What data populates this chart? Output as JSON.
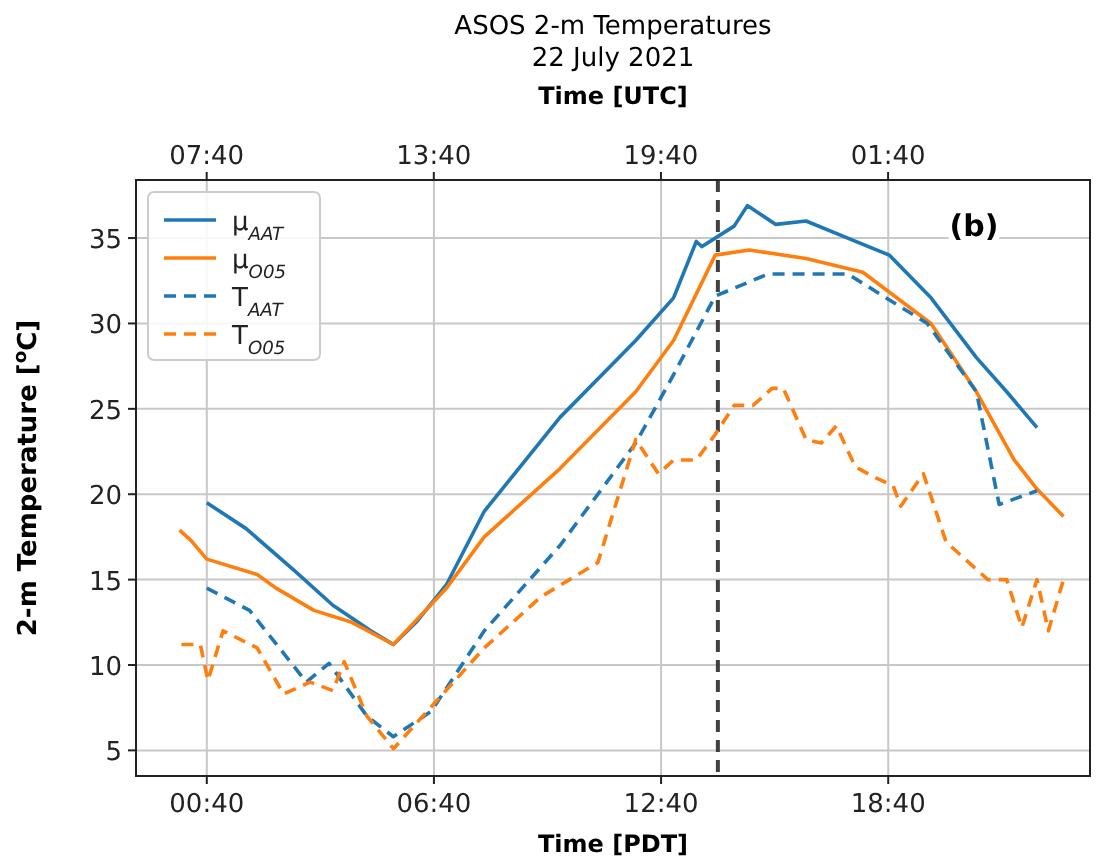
{
  "chart_data": {
    "type": "line",
    "title": "ASOS 2-m Temperatures",
    "subtitle": "22 July 2021",
    "xlabel": "Time [PDT]",
    "x2label": "Time [UTC]",
    "ylabel": "2-m Temperature [$^{o}$C]",
    "xlim": [
      -1.2,
      24
    ],
    "xticks": [
      {
        "value": 0.67,
        "label": "00:40"
      },
      {
        "value": 6.67,
        "label": "06:40"
      },
      {
        "value": 12.67,
        "label": "12:40"
      },
      {
        "value": 18.67,
        "label": "18:40"
      }
    ],
    "x2lim": [
      "2021-07-22T05:48",
      "2021-07-23T07:00"
    ],
    "x2ticks": [
      {
        "value": "2021-07-22T07:40",
        "label": "07:40"
      },
      {
        "value": "2021-07-22T13:40",
        "label": "13:40"
      },
      {
        "value": "2021-07-22T19:40",
        "label": "19:40"
      },
      {
        "value": "2021-07-23T01:40",
        "label": "01:40"
      }
    ],
    "ylim": [
      3.5,
      38.4
    ],
    "yticks": [
      5,
      10,
      15,
      20,
      25,
      30,
      35
    ],
    "grid": true,
    "legend": "top left",
    "annotations": [
      "(b)"
    ],
    "ref_lines": [
      {
        "axis": "x",
        "value": 14.17,
        "color": "#404040",
        "line_style": "dashed"
      }
    ],
    "series": [
      {
        "name": "μ$_{AAT}$",
        "color": "#1f77b4",
        "line_style": "solid",
        "x": [
          0.67,
          1.7,
          3,
          4,
          5,
          5.6,
          6.2,
          7,
          8,
          10,
          12,
          13,
          13.6,
          13.75,
          14.6,
          14.95,
          15.7,
          16.5,
          17.6,
          18.7,
          19.8,
          21,
          21.8,
          22.6
        ],
        "values": [
          19.5,
          18,
          15.5,
          13.5,
          12,
          11.2,
          12.5,
          14.7,
          19,
          24.5,
          29,
          31.5,
          34.8,
          34.5,
          35.7,
          36.9,
          35.8,
          36,
          35,
          34,
          31.5,
          28,
          26,
          23.9
        ]
      },
      {
        "name": "μ$_{O05}$",
        "color": "#ff7f0e",
        "line_style": "solid",
        "x": [
          -0.05,
          0.25,
          0.67,
          2,
          2.5,
          3.5,
          4.5,
          5.6,
          7,
          8,
          10,
          12,
          13,
          14.1,
          15,
          16.5,
          18,
          19.8,
          21,
          22,
          22.6,
          23.3
        ],
        "values": [
          17.9,
          17.3,
          16.2,
          15.3,
          14.5,
          13.2,
          12.5,
          11.2,
          14.5,
          17.5,
          21.5,
          26,
          29,
          34,
          34.3,
          33.8,
          33,
          30,
          26,
          22,
          20.3,
          18.7
        ]
      },
      {
        "name": "T$_{AAT}$",
        "color": "#1f77b4",
        "line_style": "dashed",
        "x": [
          0.67,
          1.8,
          3.3,
          3.9,
          4.9,
          5.6,
          6.6,
          8,
          10,
          12,
          13,
          14.1,
          15.5,
          17.6,
          19.7,
          21,
          21.6,
          22.6
        ],
        "values": [
          14.5,
          13.2,
          9,
          10.1,
          7,
          5.8,
          7.3,
          12,
          17,
          23,
          27,
          31.6,
          32.9,
          32.9,
          30,
          26,
          19.4,
          20.2
        ]
      },
      {
        "name": "T$_{O05}$",
        "color": "#ff7f0e",
        "line_style": "dashed",
        "x": [
          0,
          0.5,
          0.7,
          1.1,
          2,
          2.7,
          3.4,
          4,
          4.3,
          4.9,
          5.6,
          6.7,
          8,
          9.5,
          11,
          12,
          12.6,
          13,
          13.6,
          14.1,
          14.6,
          15.1,
          15.6,
          15.9,
          16.5,
          16.9,
          17.3,
          17.8,
          18.3,
          18.8,
          19,
          19.6,
          20.2,
          21.3,
          21.8,
          22.2,
          22.6,
          22.9,
          23.3
        ],
        "values": [
          11.2,
          11.2,
          9.1,
          12,
          11,
          8.3,
          9,
          8.5,
          10.2,
          7,
          5.1,
          7.8,
          11,
          14,
          16,
          23.2,
          21.2,
          22,
          22,
          23.5,
          25.2,
          25.2,
          26.2,
          26.2,
          23.2,
          23,
          24,
          21.6,
          21,
          20.5,
          19.3,
          21.2,
          17.2,
          15,
          15,
          12.2,
          15,
          12,
          15
        ]
      }
    ]
  }
}
